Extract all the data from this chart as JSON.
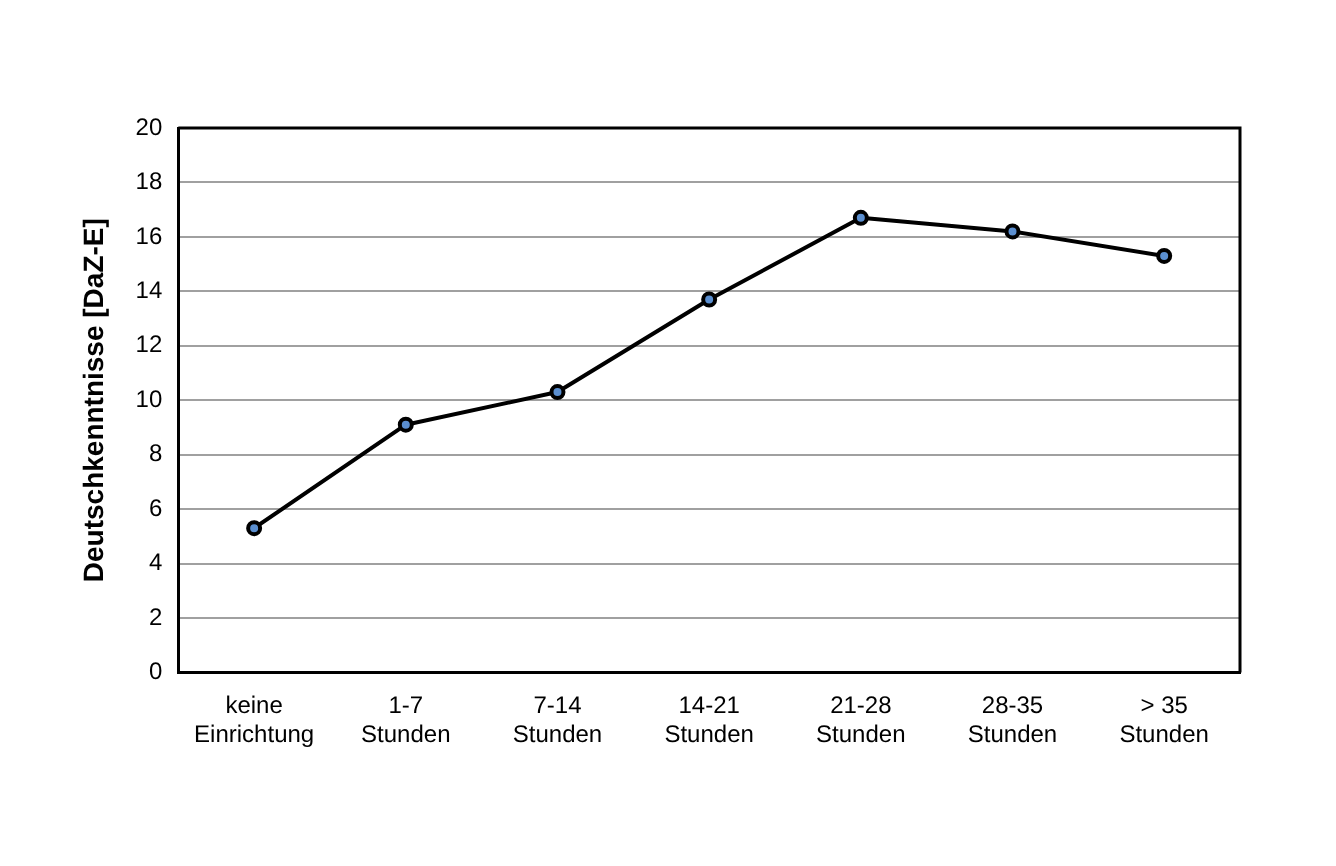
{
  "chart_data": {
    "type": "line",
    "ylabel": "Deutschkenntnisse [DaZ-E]",
    "categories": [
      "keine Einrichtung",
      "1-7 Stunden",
      "7-14 Stunden",
      "14-21 Stunden",
      "21-28 Stunden",
      "28-35 Stunden",
      "> 35 Stunden"
    ],
    "series": [
      {
        "color": "#000000",
        "values": [
          5.3,
          9.1,
          10.3,
          13.7,
          16.7,
          16.2,
          15.3
        ]
      }
    ],
    "ylim": [
      0,
      20
    ],
    "yticks": [
      0,
      2,
      4,
      6,
      8,
      10,
      12,
      14,
      16,
      18,
      20
    ],
    "grid": "y",
    "legend": false,
    "marker": "circle",
    "line_style": "solid"
  }
}
